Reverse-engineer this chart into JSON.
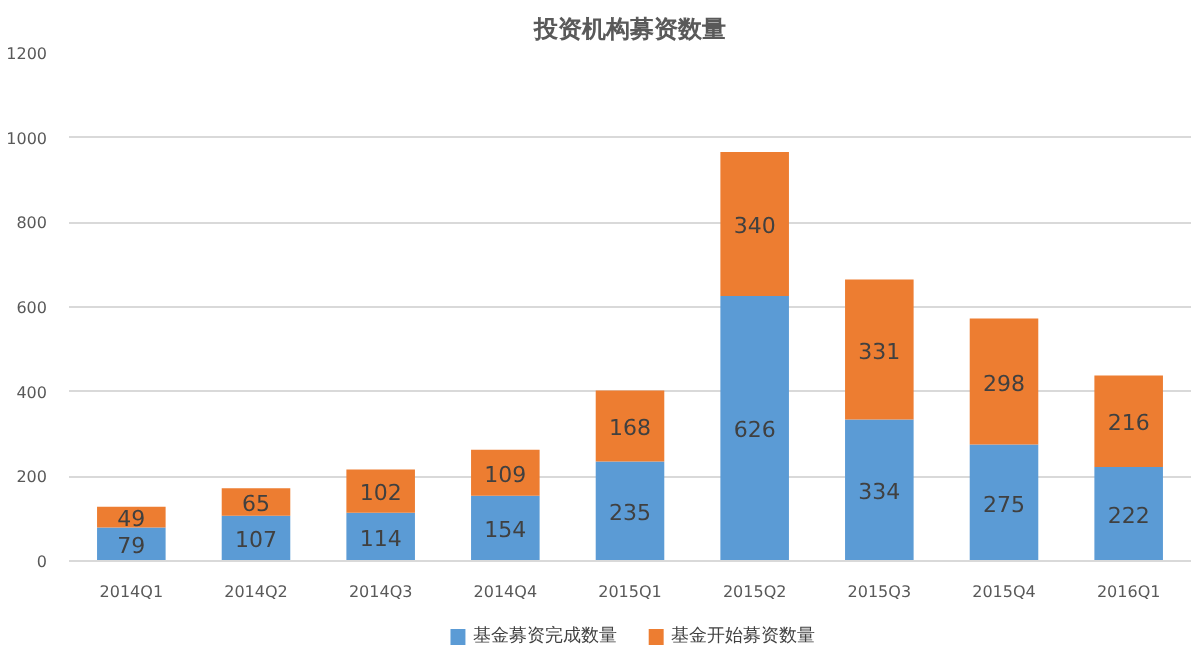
{
  "chart_data": {
    "type": "bar",
    "title": "投资机构募资数量",
    "stacked": true,
    "data_labels": true,
    "grid": "y",
    "legend": "bottom",
    "categories": [
      "2014Q1",
      "2014Q2",
      "2014Q3",
      "2014Q4",
      "2015Q1",
      "2015Q2",
      "2015Q3",
      "2015Q4",
      "2016Q1"
    ],
    "ylim": [
      0,
      1200
    ],
    "yticks": [
      0,
      200,
      400,
      600,
      800,
      1000,
      1200
    ],
    "series": [
      {
        "name": "基金募资完成数量",
        "color": "#5b9bd5",
        "values": [
          79,
          107,
          114,
          154,
          235,
          626,
          334,
          275,
          222
        ]
      },
      {
        "name": "基金开始募资数量",
        "color": "#ed7d31",
        "values": [
          49,
          65,
          102,
          109,
          168,
          340,
          331,
          298,
          216
        ]
      }
    ]
  }
}
